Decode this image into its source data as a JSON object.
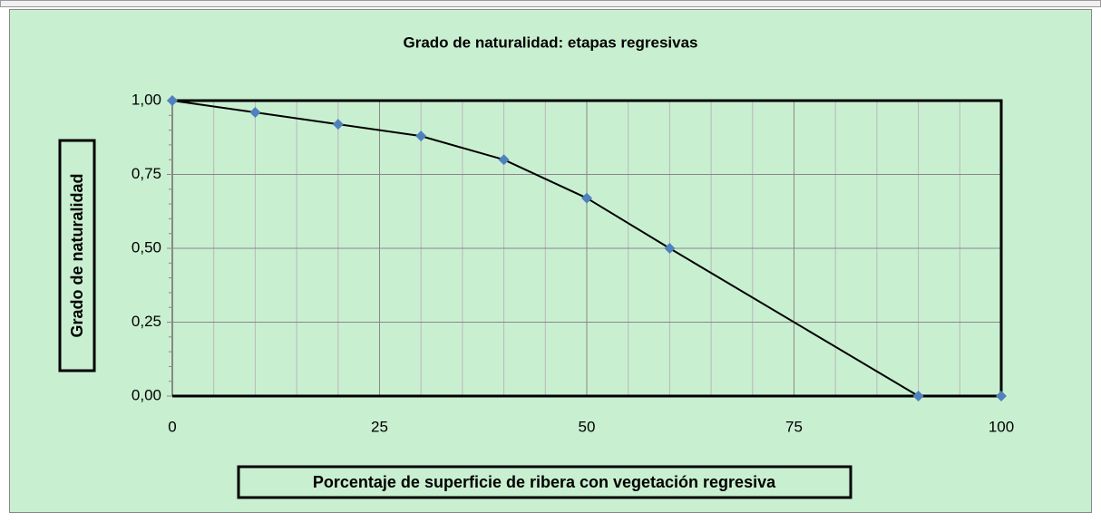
{
  "chart_data": {
    "type": "line",
    "title": "Grado de naturalidad: etapas regresivas",
    "x_label": "Porcentaje de superficie de ribera con vegetación regresiva",
    "y_label": "Grado de naturalidad",
    "x": [
      0,
      10,
      20,
      30,
      40,
      50,
      60,
      90,
      100
    ],
    "series": [
      {
        "color": "#4f81bd",
        "values": [
          1,
          0.96,
          0.92,
          0.88,
          0.8,
          0.67,
          0.5,
          0,
          0
        ]
      }
    ],
    "xlim": [
      0,
      100
    ],
    "xticks": [
      0,
      25,
      50,
      75,
      100
    ],
    "ylim": [
      0,
      1
    ],
    "yticks": [
      {
        "value": 0,
        "label": "0,00"
      },
      {
        "value": 0.25,
        "label": "0,25"
      },
      {
        "value": 0.5,
        "label": "0,50"
      },
      {
        "value": 0.75,
        "label": "0,75"
      },
      {
        "value": 1,
        "label": "1,00"
      }
    ],
    "grid": true
  }
}
